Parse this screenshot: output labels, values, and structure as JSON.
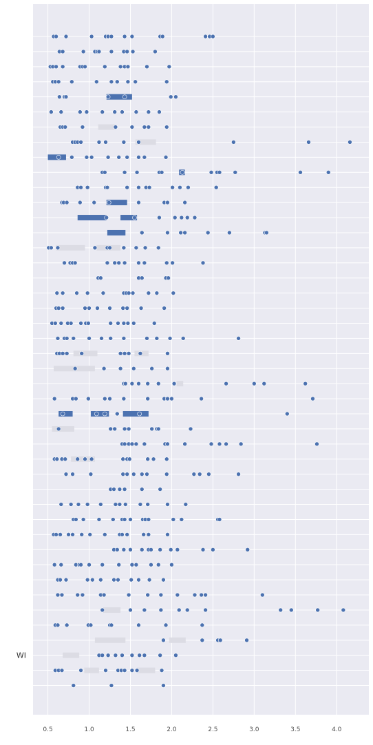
{
  "chart_data": {
    "type": "scatter",
    "title": "",
    "xlabel": "",
    "ylabel": "",
    "xlim": [
      0.32,
      4.39
    ],
    "x_ticks": [
      "0.5",
      "1.0",
      "1.5",
      "2.0",
      "2.5",
      "3.0",
      "3.5",
      "4.0"
    ],
    "x_tick_values": [
      0.5,
      1.0,
      1.5,
      2.0,
      2.5,
      3.0,
      3.5,
      4.0
    ],
    "grid": true,
    "colors": {
      "background": "#eaeaf2",
      "grid": "#ffffff",
      "point": "#4c72b0",
      "point_edge": "#ffffff",
      "bar_dark": "#4c72b0",
      "bar_light": "#dcdce4"
    },
    "rows": [
      {
        "label": "",
        "points": [
          0.57,
          0.6,
          0.72,
          1.03,
          1.2,
          1.23,
          1.27,
          1.43,
          1.52,
          1.86,
          1.89,
          2.41,
          2.46,
          2.5
        ]
      },
      {
        "label": "",
        "points": [
          0.64,
          0.68,
          0.93,
          1.07,
          1.1,
          1.12,
          1.27,
          1.42,
          1.46,
          1.53,
          1.8
        ]
      },
      {
        "label": "",
        "points": [
          0.53,
          0.56,
          0.6,
          0.68,
          0.89,
          0.92,
          0.95,
          1.19,
          1.38,
          1.43,
          1.47,
          1.7,
          1.97
        ]
      },
      {
        "label": "",
        "points": [
          0.56,
          0.59,
          0.63,
          0.79,
          1.09,
          1.27,
          1.34,
          1.47,
          1.56,
          1.94
        ]
      },
      {
        "label": "",
        "points": [
          0.64,
          0.7,
          0.72,
          1.23,
          1.43,
          1.99,
          2.05
        ],
        "bars": [
          {
            "x0": 1.21,
            "x1": 1.52,
            "shade": "dark"
          }
        ]
      },
      {
        "label": "",
        "points": [
          0.54,
          0.66,
          0.89,
          0.97,
          1.16,
          1.31,
          1.4,
          1.57,
          1.72,
          1.85
        ]
      },
      {
        "label": "",
        "points": [
          0.65,
          0.68,
          0.71,
          0.92,
          1.32,
          1.52,
          1.67,
          1.72,
          1.94
        ],
        "bars": [
          {
            "x0": 1.11,
            "x1": 1.33,
            "shade": "light"
          }
        ]
      },
      {
        "label": "",
        "points": [
          0.8,
          0.83,
          0.86,
          0.9,
          1.12,
          1.2,
          1.42,
          1.6,
          2.75,
          3.66,
          4.16
        ],
        "bars": [
          {
            "x0": 1.56,
            "x1": 1.81,
            "shade": "light"
          }
        ]
      },
      {
        "label": "",
        "points": [
          0.63,
          0.79,
          0.97,
          1.03,
          1.23,
          1.36,
          1.46,
          1.6,
          1.67,
          1.93
        ],
        "bars": [
          {
            "x0": 0.5,
            "x1": 0.72,
            "shade": "dark"
          }
        ]
      },
      {
        "label": "",
        "points": [
          1.16,
          1.19,
          1.43,
          1.58,
          1.85,
          1.88,
          2.13,
          2.48,
          2.55,
          2.58,
          2.77,
          3.56,
          3.9
        ],
        "bars": [
          {
            "x0": 2.09,
            "x1": 2.16,
            "shade": "dark"
          }
        ]
      },
      {
        "label": "",
        "points": [
          0.86,
          0.9,
          0.98,
          1.2,
          1.22,
          1.46,
          1.6,
          1.69,
          1.73,
          2.01,
          2.1,
          2.2,
          2.54
        ]
      },
      {
        "label": "",
        "points": [
          0.67,
          0.69,
          0.73,
          0.89,
          1.06,
          1.24,
          1.6,
          1.91,
          1.95,
          2.16
        ],
        "bars": [
          {
            "x0": 1.21,
            "x1": 1.46,
            "shade": "dark"
          }
        ]
      },
      {
        "label": "",
        "points": [
          1.21,
          1.55,
          1.85,
          2.04,
          2.12,
          2.19,
          2.28
        ],
        "bars": [
          {
            "x0": 0.86,
            "x1": 1.21,
            "shade": "dark"
          },
          {
            "x0": 1.38,
            "x1": 1.58,
            "shade": "dark"
          }
        ]
      },
      {
        "label": "",
        "points": [
          1.64,
          1.95,
          2.11,
          2.16,
          2.44,
          2.7,
          3.13,
          3.15
        ],
        "bars": [
          {
            "x0": 1.22,
            "x1": 1.44,
            "shade": "dark"
          }
        ]
      },
      {
        "label": "",
        "points": [
          0.51,
          0.54,
          0.62,
          1.07,
          1.22,
          1.25,
          1.42,
          1.57,
          1.68,
          1.84
        ],
        "bars": [
          {
            "x0": 0.6,
            "x1": 0.95,
            "shade": "light"
          },
          {
            "x0": 1.09,
            "x1": 1.38,
            "shade": "light"
          }
        ]
      },
      {
        "label": "",
        "points": [
          0.7,
          0.77,
          0.8,
          0.83,
          1.22,
          1.31,
          1.36,
          1.43,
          1.6,
          1.67,
          1.94,
          2.01,
          2.38
        ]
      },
      {
        "label": "",
        "points": [
          1.11,
          1.14,
          1.6,
          1.64,
          1.93,
          1.96
        ]
      },
      {
        "label": "",
        "points": [
          0.61,
          0.68,
          0.85,
          0.98,
          1.17,
          1.42,
          1.45,
          1.48,
          1.53,
          1.72,
          1.82,
          2.02
        ]
      },
      {
        "label": "",
        "points": [
          0.6,
          0.63,
          0.68,
          0.95,
          1.0,
          1.1,
          1.25,
          1.41,
          1.46,
          1.63,
          1.91
        ]
      },
      {
        "label": "",
        "points": [
          0.55,
          0.59,
          0.66,
          0.74,
          0.78,
          0.9,
          0.96,
          0.99,
          1.26,
          1.35,
          1.42,
          1.47,
          1.54,
          1.79
        ]
      },
      {
        "label": "",
        "points": [
          0.62,
          0.7,
          0.73,
          0.81,
          1.0,
          1.15,
          1.26,
          1.42,
          1.7,
          1.82,
          1.98,
          2.14,
          2.81
        ]
      },
      {
        "label": "",
        "points": [
          0.61,
          0.64,
          0.68,
          0.73,
          0.91,
          1.38,
          1.43,
          1.48,
          1.62,
          1.95
        ],
        "bars": [
          {
            "x0": 0.81,
            "x1": 1.1,
            "shade": "light"
          },
          {
            "x0": 1.55,
            "x1": 1.72,
            "shade": "light"
          }
        ]
      },
      {
        "label": "",
        "points": [
          0.83,
          1.18,
          1.38,
          1.54,
          1.76,
          1.95
        ],
        "bars": [
          {
            "x0": 0.57,
            "x1": 1.07,
            "shade": "light"
          }
        ]
      },
      {
        "label": "",
        "points": [
          1.42,
          1.44,
          1.52,
          1.6,
          1.71,
          1.84,
          2.03,
          2.66,
          3.0,
          3.12,
          3.62
        ],
        "bars": [
          {
            "x0": 2.06,
            "x1": 2.14,
            "shade": "light"
          }
        ]
      },
      {
        "label": "",
        "points": [
          0.58,
          0.8,
          0.84,
          0.99,
          1.19,
          1.25,
          1.42,
          1.71,
          1.91,
          1.95,
          2.0,
          2.36,
          3.71
        ]
      },
      {
        "label": "",
        "points": [
          0.68,
          1.09,
          1.19,
          1.34,
          1.61,
          3.4
        ],
        "bars": [
          {
            "x0": 0.63,
            "x1": 0.8,
            "shade": "dark"
          },
          {
            "x0": 1.02,
            "x1": 1.24,
            "shade": "dark"
          },
          {
            "x0": 1.41,
            "x1": 1.72,
            "shade": "dark"
          }
        ]
      },
      {
        "label": "",
        "points": [
          0.63,
          1.26,
          1.31,
          1.43,
          1.48,
          1.76,
          1.82,
          1.84,
          2.23
        ],
        "bars": [
          {
            "x0": 0.55,
            "x1": 0.82,
            "shade": "light"
          }
        ]
      },
      {
        "label": "",
        "points": [
          1.4,
          1.43,
          1.48,
          1.52,
          1.57,
          1.67,
          1.92,
          1.95,
          2.16,
          2.48,
          2.58,
          2.66,
          2.84,
          3.76
        ]
      },
      {
        "label": "",
        "points": [
          0.58,
          0.61,
          0.67,
          0.71,
          0.86,
          0.95,
          1.03,
          1.41,
          1.46,
          1.49,
          1.71,
          1.78,
          1.94
        ],
        "bars": [
          {
            "x0": 0.78,
            "x1": 1.07,
            "shade": "light"
          }
        ]
      },
      {
        "label": "",
        "points": [
          0.72,
          0.8,
          1.02,
          1.41,
          1.46,
          1.54,
          1.64,
          1.7,
          1.94,
          2.27,
          2.34,
          2.45,
          2.81
        ]
      },
      {
        "label": "",
        "points": [
          1.26,
          1.3,
          1.37,
          1.43,
          1.64,
          1.86
        ]
      },
      {
        "label": "",
        "points": [
          0.66,
          0.78,
          0.87,
          0.98,
          1.14,
          1.32,
          1.37,
          1.44,
          1.62,
          1.71,
          1.95,
          2.17
        ]
      },
      {
        "label": "",
        "points": [
          0.81,
          0.84,
          0.93,
          1.12,
          1.29,
          1.4,
          1.43,
          1.5,
          1.65,
          1.68,
          1.72,
          2.02,
          2.12,
          2.56,
          2.58
        ]
      },
      {
        "label": "",
        "points": [
          0.57,
          0.6,
          0.65,
          0.75,
          0.8,
          0.91,
          1.01,
          1.19,
          1.37,
          1.4,
          1.46,
          1.66,
          1.72,
          1.95
        ]
      },
      {
        "label": "",
        "points": [
          1.3,
          1.34,
          1.42,
          1.5,
          1.64,
          1.72,
          1.75,
          1.86,
          1.99,
          2.07,
          2.38,
          2.5,
          2.92
        ]
      },
      {
        "label": "",
        "points": [
          0.58,
          0.66,
          0.84,
          0.88,
          0.9,
          1.0,
          1.16,
          1.36,
          1.52,
          1.57,
          1.75,
          1.84,
          2.0
        ]
      },
      {
        "label": "",
        "points": [
          0.62,
          0.65,
          0.72,
          0.98,
          1.04,
          1.14,
          1.3,
          1.35,
          1.51,
          1.6,
          1.73,
          1.9
        ]
      },
      {
        "label": "",
        "points": [
          0.62,
          0.67,
          0.86,
          0.92,
          1.14,
          1.18,
          1.48,
          1.71,
          1.87,
          2.07,
          2.28,
          2.36,
          2.41,
          3.1
        ]
      },
      {
        "label": "",
        "points": [
          1.16,
          1.5,
          1.67,
          1.87,
          2.09,
          2.19,
          2.41,
          3.32,
          3.45,
          3.77,
          4.08
        ],
        "bars": [
          {
            "x0": 1.17,
            "x1": 1.38,
            "shade": "light"
          }
        ]
      },
      {
        "label": "",
        "points": [
          0.59,
          0.62,
          0.73,
          0.99,
          1.02,
          1.25,
          1.27,
          1.6,
          1.93,
          2.37
        ]
      },
      {
        "label": "",
        "points": [
          1.9,
          2.37,
          2.56,
          2.59,
          2.91
        ],
        "bars": [
          {
            "x0": 1.07,
            "x1": 1.44,
            "shade": "light"
          },
          {
            "x0": 1.97,
            "x1": 2.17,
            "shade": "light"
          }
        ]
      },
      {
        "label": "WI",
        "points": [
          1.12,
          1.16,
          1.23,
          1.32,
          1.4,
          1.52,
          1.61,
          1.67,
          1.86,
          2.05
        ],
        "bars": [
          {
            "x0": 0.68,
            "x1": 0.88,
            "shade": "light"
          }
        ]
      },
      {
        "label": "",
        "points": [
          0.59,
          0.63,
          0.67,
          0.9,
          1.2,
          1.35,
          1.39,
          1.43,
          1.52,
          1.58,
          1.88
        ],
        "bars": [
          {
            "x0": 0.94,
            "x1": 1.12,
            "shade": "light"
          },
          {
            "x0": 1.58,
            "x1": 1.8,
            "shade": "light"
          }
        ]
      },
      {
        "label": "",
        "points": [
          0.81,
          1.27,
          1.9
        ]
      }
    ]
  }
}
